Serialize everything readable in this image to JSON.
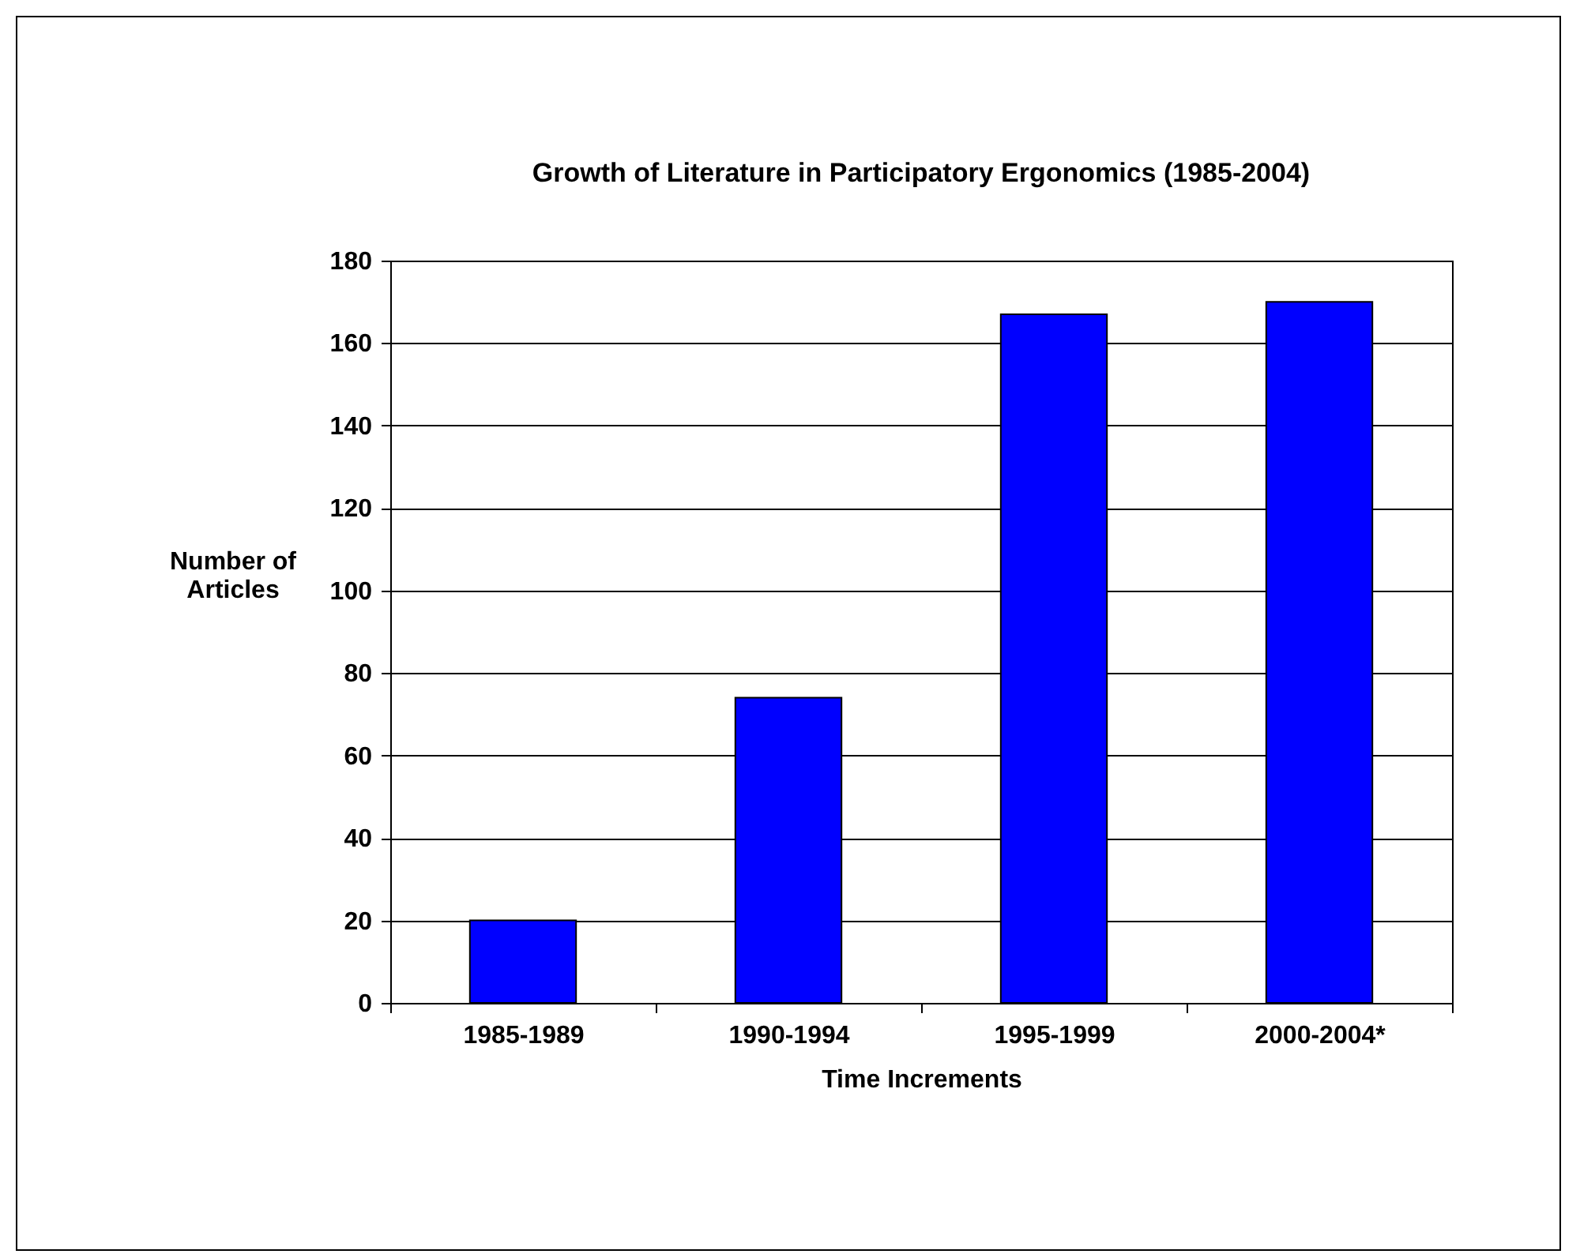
{
  "chart_data": {
    "type": "bar",
    "title": "Growth of Literature in Participatory Ergonomics (1985-2004)",
    "xlabel": "Time Increments",
    "ylabel": "Number of Articles",
    "categories": [
      "1985-1989",
      "1990-1994",
      "1995-1999",
      "2000-2004*"
    ],
    "values": [
      20,
      74,
      167,
      170
    ],
    "color": "#0000ff",
    "ylim": [
      0,
      180
    ],
    "yticks": [
      0,
      20,
      40,
      60,
      80,
      100,
      120,
      140,
      160,
      180
    ],
    "grid": "y"
  }
}
